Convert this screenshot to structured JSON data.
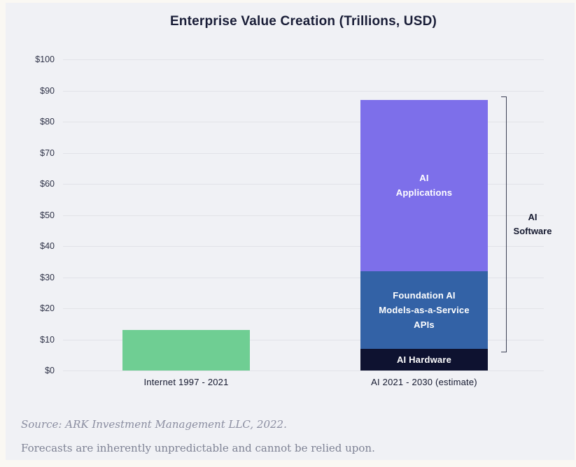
{
  "chart_data": {
    "type": "bar",
    "stacked": true,
    "title": "Enterprise Value Creation (Trillions, USD)",
    "unit": "Trillions, USD",
    "ylim": [
      0,
      100
    ],
    "grid": true,
    "legend": "none",
    "y_ticks": [
      {
        "value": 0,
        "label": "$0"
      },
      {
        "value": 10,
        "label": "$10"
      },
      {
        "value": 20,
        "label": "$20"
      },
      {
        "value": 30,
        "label": "$30"
      },
      {
        "value": 40,
        "label": "$40"
      },
      {
        "value": 50,
        "label": "$50"
      },
      {
        "value": 60,
        "label": "$60"
      },
      {
        "value": 70,
        "label": "$70"
      },
      {
        "value": 80,
        "label": "$80"
      },
      {
        "value": 90,
        "label": "$90"
      },
      {
        "value": 100,
        "label": "$100"
      }
    ],
    "categories": [
      "Internet 1997 - 2021",
      "AI 2021 - 2030 (estimate)"
    ],
    "bars": [
      {
        "category": "Internet 1997 - 2021",
        "total": 13,
        "segments": [
          {
            "id": "internet",
            "name": "Internet 1997 - 2021",
            "value": 13,
            "color": "#6FCE93",
            "label_lines": []
          }
        ]
      },
      {
        "category": "AI 2021 - 2030 (estimate)",
        "total": 87,
        "segments": [
          {
            "id": "ai-hardware",
            "name": "AI Hardware",
            "value": 7,
            "color": "#0E1230",
            "label_lines": [
              "AI Hardware"
            ]
          },
          {
            "id": "foundation-ai-models",
            "name": "Foundation AI Models-as-a-Service APIs",
            "value": 25,
            "color": "#3362A6",
            "label_lines": [
              "Foundation AI",
              "Models-as-a-Service",
              "APIs"
            ]
          },
          {
            "id": "ai-applications",
            "name": "AI Applications",
            "value": 55,
            "color": "#7D6FEA",
            "label_lines": [
              "AI",
              "Applications"
            ]
          }
        ]
      }
    ],
    "annotation": {
      "id": "ai-software",
      "label_lines": [
        "AI",
        "Software"
      ],
      "from_value": 7,
      "to_value": 87
    }
  },
  "footer": {
    "source": "Source: ARK Investment Management LLC, 2022.",
    "disclaimer": "Forecasts are inherently unpredictable and cannot be relied upon."
  },
  "colors": {
    "internet_bar": "#6FCE93",
    "ai_hardware": "#0E1230",
    "foundation_ai": "#3362A6",
    "ai_applications": "#7D6FEA",
    "panel_background": "#F0F1F5",
    "outer_background": "#FAF8F3",
    "gridline": "#E2E3E8",
    "text_dark": "#191D37",
    "footer_text": "#8A8DA0",
    "bracket": "#3C4054"
  }
}
